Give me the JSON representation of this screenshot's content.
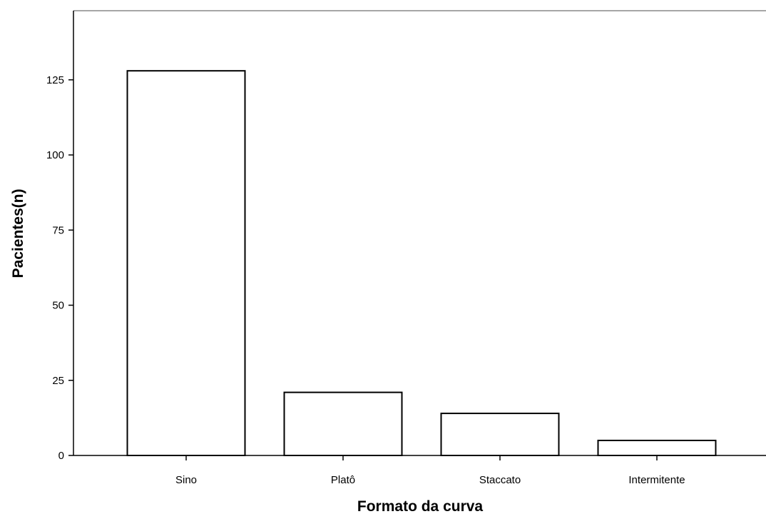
{
  "chart_data": {
    "type": "bar",
    "title": "",
    "xlabel": "Formato da curva",
    "ylabel": "Pacientes(n)",
    "categories": [
      "Sino",
      "Platô",
      "Staccato",
      "Intermitente"
    ],
    "values": [
      128,
      21,
      14,
      5
    ],
    "ylim": [
      0,
      148
    ],
    "yticks": [
      0,
      25,
      50,
      75,
      100,
      125
    ],
    "grid": false,
    "legend": "none",
    "colors": {
      "bar_fill": "#ffffff",
      "bar_stroke": "#000000",
      "axis": "#000000",
      "frame": "#888888",
      "background": "#ffffff"
    }
  }
}
